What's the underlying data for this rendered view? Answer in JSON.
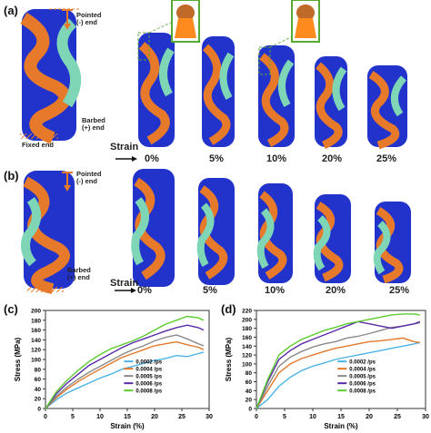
{
  "panels": {
    "a": {
      "label": "(a)",
      "pointed_end": "Pointed\n(-) end",
      "barbed_end": "Barbed\n(+) end",
      "fixed_end": "Fixed end",
      "strain_label": "Strain",
      "strains": [
        "0%",
        "5%",
        "10%",
        "20%",
        "25%"
      ]
    },
    "b": {
      "label": "(b)",
      "pointed_end": "Pointed\n(-) end",
      "barbed_end": "Barbed\n(+) end",
      "strain_label": "Strain",
      "strains": [
        "0%",
        "5%",
        "10%",
        "20%",
        "25%"
      ]
    }
  },
  "colors": {
    "blue": "#2233cc",
    "orange": "#e77a2a",
    "teal": "#7fd6b6",
    "inset_border": "#55aa33"
  },
  "chart_data": [
    {
      "panel_label": "(c)",
      "type": "line",
      "xlabel": "Strain (%)",
      "ylabel": "Stress (MPa)",
      "xlim": [
        0,
        30
      ],
      "ylim": [
        0,
        200
      ],
      "xticks": [
        0,
        5,
        10,
        15,
        20,
        25,
        30
      ],
      "yticks": [
        0,
        20,
        40,
        60,
        80,
        100,
        120,
        140,
        160,
        180,
        200
      ],
      "legend_position": "bottom-right",
      "x": [
        0,
        2,
        4,
        6,
        8,
        10,
        12,
        14,
        16,
        18,
        20,
        22,
        24,
        26,
        28,
        29
      ],
      "series": [
        {
          "name": "0.0002 /ps",
          "color": "#4db3e6",
          "values": [
            0,
            18,
            32,
            42,
            52,
            62,
            70,
            80,
            86,
            92,
            98,
            102,
            108,
            106,
            112,
            115
          ]
        },
        {
          "name": "0.0004 /ps",
          "color": "#e3792b",
          "values": [
            0,
            22,
            40,
            55,
            68,
            80,
            92,
            104,
            112,
            120,
            128,
            132,
            136,
            130,
            125,
            120
          ]
        },
        {
          "name": "0.0005 /ps",
          "color": "#8a8a8a",
          "values": [
            0,
            25,
            44,
            60,
            74,
            86,
            98,
            110,
            120,
            128,
            138,
            145,
            150,
            142,
            132,
            128
          ]
        },
        {
          "name": "0.0006 /ps",
          "color": "#5a2aa8",
          "values": [
            0,
            30,
            52,
            70,
            88,
            100,
            112,
            124,
            134,
            142,
            150,
            158,
            165,
            170,
            165,
            160
          ]
        },
        {
          "name": "0.0008 /ps",
          "color": "#5ccb2e",
          "values": [
            0,
            34,
            58,
            78,
            96,
            110,
            122,
            130,
            138,
            148,
            160,
            172,
            180,
            188,
            185,
            180
          ]
        }
      ]
    },
    {
      "panel_label": "(d)",
      "type": "line",
      "xlabel": "Strain (%)",
      "ylabel": "Stress (MPa)",
      "xlim": [
        0,
        30
      ],
      "ylim": [
        0,
        220
      ],
      "xticks": [
        0,
        5,
        10,
        15,
        20,
        25,
        30
      ],
      "yticks": [
        0,
        20,
        40,
        60,
        80,
        100,
        120,
        140,
        160,
        180,
        200,
        220
      ],
      "legend_position": "bottom-right",
      "x": [
        0,
        2,
        4,
        6,
        8,
        10,
        12,
        14,
        16,
        18,
        20,
        22,
        24,
        26,
        28,
        29
      ],
      "series": [
        {
          "name": "0.0002 /ps",
          "color": "#4db3e6",
          "values": [
            0,
            20,
            50,
            70,
            85,
            95,
            102,
            110,
            115,
            120,
            125,
            130,
            135,
            140,
            145,
            148
          ]
        },
        {
          "name": "0.0004 /ps",
          "color": "#e3792b",
          "values": [
            0,
            40,
            80,
            100,
            112,
            120,
            128,
            135,
            140,
            145,
            150,
            152,
            155,
            158,
            150,
            148
          ]
        },
        {
          "name": "0.0005 /ps",
          "color": "#8a8a8a",
          "values": [
            0,
            50,
            95,
            115,
            128,
            138,
            145,
            150,
            158,
            162,
            168,
            175,
            182,
            185,
            190,
            192
          ]
        },
        {
          "name": "0.0006 /ps",
          "color": "#5a2aa8",
          "values": [
            0,
            60,
            110,
            130,
            145,
            155,
            165,
            175,
            185,
            195,
            190,
            185,
            180,
            185,
            190,
            195
          ]
        },
        {
          "name": "0.0008 /ps",
          "color": "#5ccb2e",
          "values": [
            0,
            65,
            120,
            140,
            155,
            165,
            175,
            182,
            190,
            195,
            200,
            205,
            210,
            212,
            212,
            210
          ]
        }
      ]
    }
  ]
}
